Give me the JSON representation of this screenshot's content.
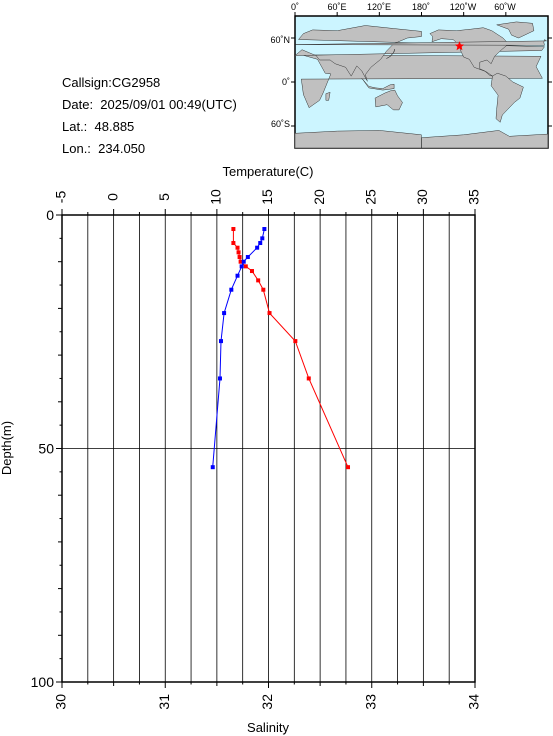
{
  "header": {
    "callsign": "Callsign:CG2958",
    "date": "Date:  2025/09/01 00:49(UTC)",
    "lat": "Lat.:  48.885",
    "lon": "Lon.:  234.050"
  },
  "map": {
    "top_ticks": [
      "0˚",
      "60˚E",
      "120˚E",
      "180˚",
      "120˚W",
      "60˚W"
    ],
    "left_ticks": [
      "60˚N",
      "0˚",
      "60˚S"
    ],
    "ocean_color": "#ccf5ff",
    "land_color": "#c0c0c0",
    "marker_color": "#ff0000",
    "station": {
      "lat": 48.885,
      "lon": 234.05
    }
  },
  "chart_data": {
    "type": "line",
    "title": "",
    "top_axis": {
      "label": "Temperature(C)",
      "range": [
        -5,
        35
      ],
      "ticks": [
        "-5",
        "0",
        "5",
        "10",
        "15",
        "20",
        "25",
        "30",
        "35"
      ]
    },
    "bottom_axis": {
      "label": "Salinity",
      "range": [
        30,
        34
      ],
      "ticks": [
        "30",
        "31",
        "32",
        "33",
        "34"
      ]
    },
    "left_axis": {
      "label": "Depth(m)",
      "range": [
        0,
        100
      ],
      "inverted": true,
      "ticks": [
        "0",
        "50",
        "100"
      ]
    },
    "grid": true,
    "series": [
      {
        "axis": "temperature",
        "color": "#ff0000",
        "depth": [
          3,
          6,
          7,
          8,
          9,
          10,
          11,
          12,
          14,
          16,
          21,
          27,
          35,
          54
        ],
        "values": [
          11.6,
          11.6,
          12.0,
          12.1,
          12.2,
          12.3,
          12.8,
          13.4,
          14.0,
          14.5,
          15.1,
          17.6,
          18.9,
          22.7
        ]
      },
      {
        "axis": "salinity",
        "color": "#0000ff",
        "depth": [
          3,
          5,
          6,
          7,
          9,
          10,
          11,
          13,
          16,
          21,
          27,
          35,
          54
        ],
        "values": [
          31.96,
          31.94,
          31.92,
          31.89,
          31.8,
          31.76,
          31.74,
          31.7,
          31.64,
          31.57,
          31.54,
          31.53,
          31.46
        ]
      }
    ]
  }
}
